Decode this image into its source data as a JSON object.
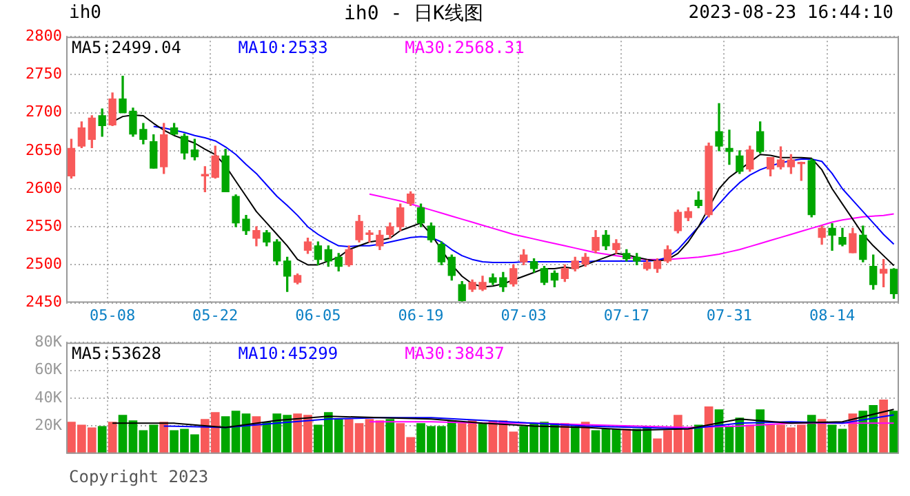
{
  "chart_data": [
    {
      "type": "candlestick",
      "title": "ih0 - 日K线图",
      "annotations": [
        "ih0",
        "2023-08-23 16:44:10"
      ],
      "categories": [
        null,
        null,
        null,
        null,
        "05-08",
        null,
        null,
        null,
        null,
        null,
        null,
        null,
        null,
        null,
        "05-22",
        null,
        null,
        null,
        null,
        null,
        null,
        null,
        null,
        null,
        "06-05",
        null,
        null,
        null,
        null,
        null,
        null,
        null,
        null,
        null,
        "06-19",
        null,
        null,
        null,
        null,
        null,
        null,
        null,
        null,
        null,
        "07-03",
        null,
        null,
        null,
        null,
        null,
        null,
        null,
        null,
        null,
        "07-17",
        null,
        null,
        null,
        null,
        null,
        null,
        null,
        null,
        null,
        "07-31",
        null,
        null,
        null,
        null,
        null,
        null,
        null,
        null,
        null,
        "08-14",
        null,
        null,
        null,
        null,
        null,
        null
      ],
      "ohlc": [
        [
          2617,
          2665,
          2614,
          2653
        ],
        [
          2656,
          2688,
          2654,
          2680
        ],
        [
          2665,
          2696,
          2654,
          2693
        ],
        [
          2696,
          2705,
          2669,
          2683
        ],
        [
          2684,
          2726,
          2683,
          2718
        ],
        [
          2718,
          2748,
          2700,
          2700
        ],
        [
          2702,
          2706,
          2669,
          2672
        ],
        [
          2678,
          2686,
          2659,
          2665
        ],
        [
          2662,
          2671,
          2627,
          2627
        ],
        [
          2629,
          2686,
          2620,
          2671
        ],
        [
          2680,
          2686,
          2671,
          2672
        ],
        [
          2669,
          2672,
          2639,
          2647
        ],
        [
          2651,
          2665,
          2638,
          2642
        ],
        [
          2617,
          2629,
          2596,
          2618
        ],
        [
          2615,
          2656,
          2614,
          2643
        ],
        [
          2643,
          2652,
          2596,
          2596
        ],
        [
          2590,
          2592,
          2550,
          2555
        ],
        [
          2560,
          2565,
          2540,
          2545
        ],
        [
          2535,
          2550,
          2525,
          2545
        ],
        [
          2542,
          2545,
          2525,
          2530
        ],
        [
          2530,
          2533,
          2500,
          2505
        ],
        [
          2505,
          2510,
          2465,
          2485
        ],
        [
          2477,
          2488,
          2475,
          2486
        ],
        [
          2519,
          2535,
          2515,
          2530
        ],
        [
          2525,
          2530,
          2500,
          2507
        ],
        [
          2520,
          2525,
          2498,
          2505
        ],
        [
          2510,
          2515,
          2492,
          2498
        ],
        [
          2500,
          2525,
          2498,
          2520
        ],
        [
          2533,
          2565,
          2530,
          2557
        ],
        [
          2540,
          2545,
          2530,
          2541
        ],
        [
          2525,
          2545,
          2520,
          2539
        ],
        [
          2540,
          2555,
          2535,
          2550
        ],
        [
          2550,
          2580,
          2545,
          2575
        ],
        [
          2581,
          2596,
          2578,
          2593
        ],
        [
          2575,
          2580,
          2550,
          2555
        ],
        [
          2551,
          2555,
          2530,
          2533
        ],
        [
          2527,
          2530,
          2500,
          2504
        ],
        [
          2510,
          2513,
          2480,
          2486
        ],
        [
          2474,
          2478,
          2452,
          2453
        ],
        [
          2468,
          2480,
          2465,
          2477
        ],
        [
          2468,
          2485,
          2466,
          2477
        ],
        [
          2483,
          2488,
          2474,
          2477
        ],
        [
          2483,
          2490,
          2465,
          2471
        ],
        [
          2475,
          2500,
          2472,
          2495
        ],
        [
          2504,
          2520,
          2500,
          2513
        ],
        [
          2504,
          2508,
          2490,
          2495
        ],
        [
          2495,
          2498,
          2474,
          2477
        ],
        [
          2489,
          2492,
          2471,
          2480
        ],
        [
          2482,
          2500,
          2478,
          2495
        ],
        [
          2495,
          2510,
          2492,
          2505
        ],
        [
          2501,
          2515,
          2498,
          2510
        ],
        [
          2519,
          2545,
          2516,
          2536
        ],
        [
          2539,
          2545,
          2520,
          2525
        ],
        [
          2520,
          2533,
          2515,
          2528
        ],
        [
          2515,
          2520,
          2505,
          2508
        ],
        [
          2510,
          2515,
          2500,
          2505
        ],
        [
          2495,
          2506,
          2493,
          2503
        ],
        [
          2495,
          2508,
          2490,
          2505
        ],
        [
          2505,
          2525,
          2503,
          2520
        ],
        [
          2545,
          2572,
          2542,
          2569
        ],
        [
          2562,
          2575,
          2558,
          2570
        ],
        [
          2585,
          2596,
          2575,
          2578
        ],
        [
          2566,
          2660,
          2563,
          2656
        ],
        [
          2675,
          2712,
          2650,
          2656
        ],
        [
          2653,
          2677,
          2632,
          2649
        ],
        [
          2643,
          2650,
          2620,
          2623
        ],
        [
          2626,
          2656,
          2623,
          2651
        ],
        [
          2675,
          2688,
          2647,
          2649
        ],
        [
          2626,
          2641,
          2617,
          2641
        ],
        [
          2629,
          2655,
          2626,
          2638
        ],
        [
          2629,
          2645,
          2620,
          2638
        ],
        [
          2633,
          2635,
          2611,
          2634
        ],
        [
          2637,
          2639,
          2563,
          2566
        ],
        [
          2536,
          2551,
          2527,
          2548
        ],
        [
          2548,
          2554,
          2519,
          2539
        ],
        [
          2536,
          2548,
          2525,
          2527
        ],
        [
          2516,
          2548,
          2516,
          2541
        ],
        [
          2539,
          2551,
          2504,
          2507
        ],
        [
          2498,
          2513,
          2468,
          2474
        ],
        [
          2489,
          2507,
          2471,
          2494
        ],
        [
          2494,
          2495,
          2456,
          2462
        ]
      ],
      "series": [
        {
          "name": "MA5:2499.04",
          "type": "line",
          "color": "#000000",
          "values": [
            null,
            null,
            null,
            null,
            2688,
            2695,
            2697,
            2696,
            2686,
            2677,
            2670,
            2665,
            2660,
            2652,
            2645,
            2630,
            2610,
            2590,
            2570,
            2555,
            2540,
            2525,
            2507,
            2500,
            2500,
            2505,
            2510,
            2520,
            2525,
            2530,
            2532,
            2535,
            2545,
            2550,
            2555,
            2540,
            2520,
            2500,
            2485,
            2475,
            2471,
            2472,
            2475,
            2480,
            2485,
            2490,
            2495,
            2495,
            2497,
            2495,
            2500,
            2505,
            2510,
            2515,
            2513,
            2510,
            2507,
            2505,
            2507,
            2515,
            2530,
            2550,
            null,
            2600,
            2615,
            2625,
            2635,
            2645,
            2644,
            2641,
            2641,
            2641,
            2640,
            2625,
            2600,
            2580,
            2560,
            2540,
            2525,
            2512,
            2499
          ]
        },
        {
          "name": "MA10:2533",
          "type": "line",
          "color": "#0000ff",
          "values": [
            null,
            null,
            null,
            null,
            null,
            null,
            null,
            null,
            2682,
            2680,
            2677,
            2674,
            2670,
            2667,
            2663,
            2655,
            2645,
            2632,
            2620,
            2605,
            2590,
            2578,
            2565,
            2550,
            2540,
            2532,
            2525,
            2524,
            2525,
            2525,
            2527,
            2530,
            2533,
            2536,
            2537,
            2536,
            2530,
            2520,
            2512,
            2507,
            2504,
            2503,
            2503,
            2503,
            2504,
            2504,
            2504,
            2504,
            2504,
            2504,
            2504,
            2505,
            2505,
            2505,
            2505,
            2505,
            2505,
            2506,
            2510,
            2520,
            2535,
            2550,
            2565,
            2580,
            2595,
            2608,
            2618,
            2625,
            2630,
            2634,
            2637,
            2639,
            2639,
            2636,
            2620,
            2600,
            2585,
            2570,
            2555,
            2540,
            2527
          ]
        },
        {
          "name": "MA30:2568.31",
          "type": "line",
          "color": "#ff00ff",
          "values": [
            null,
            null,
            null,
            null,
            null,
            null,
            null,
            null,
            null,
            null,
            null,
            null,
            null,
            null,
            null,
            null,
            null,
            null,
            null,
            null,
            null,
            null,
            null,
            null,
            null,
            null,
            null,
            null,
            null,
            2593,
            2590,
            2587,
            2584,
            2580,
            2576,
            2572,
            2568,
            2564,
            2560,
            2556,
            2552,
            2548,
            2544,
            2540,
            2537,
            2534,
            2531,
            2528,
            2525,
            2522,
            2519,
            2516,
            2514,
            2512,
            2510,
            2508,
            2507,
            2507,
            2507,
            2508,
            2509,
            2510,
            2512,
            2514,
            2517,
            2520,
            2524,
            2528,
            2532,
            2536,
            2540,
            2544,
            2548,
            2552,
            2556,
            2559,
            2561,
            2563,
            2564,
            2565,
            2567
          ]
        }
      ],
      "ylim": [
        2450,
        2800
      ],
      "yticks": [
        2450,
        2500,
        2550,
        2600,
        2650,
        2700,
        2750,
        2800
      ],
      "grid": true,
      "legend": "top left"
    },
    {
      "type": "bar",
      "annotations": [
        "Copyright 2023"
      ],
      "categories": [
        null,
        null,
        null,
        null,
        null,
        null,
        null,
        null,
        null,
        null,
        null,
        null,
        null,
        null,
        null,
        null,
        null,
        null,
        null,
        null,
        null,
        null,
        null,
        null,
        null,
        null,
        null,
        null,
        null,
        null,
        null,
        null,
        null,
        null,
        null,
        null,
        null,
        null,
        null,
        null,
        null,
        null,
        null,
        null,
        null,
        null,
        null,
        null,
        null,
        null,
        null,
        null,
        null,
        null,
        null,
        null,
        null,
        null,
        null,
        null,
        null,
        null,
        null,
        null,
        null,
        null,
        null,
        null,
        null,
        null,
        null,
        null,
        null,
        null,
        null,
        null,
        null,
        null,
        null,
        null,
        null
      ],
      "values": [
        23000,
        21000,
        19000,
        20000,
        23000,
        28000,
        24000,
        17000,
        21000,
        23000,
        17000,
        18000,
        14000,
        25000,
        30000,
        27000,
        31000,
        29000,
        27000,
        23000,
        29000,
        28000,
        29000,
        28000,
        21000,
        30000,
        25000,
        25000,
        22000,
        25000,
        24000,
        25000,
        22000,
        12000,
        22000,
        20000,
        20000,
        24000,
        22000,
        24000,
        22000,
        24000,
        24000,
        16000,
        20000,
        22000,
        23000,
        22000,
        22000,
        20000,
        23000,
        17000,
        18000,
        18000,
        18000,
        18000,
        20000,
        11000,
        17000,
        28000,
        18000,
        21000,
        34000,
        32000,
        20000,
        26000,
        21000,
        32000,
        21000,
        21000,
        19000,
        21000,
        28000,
        25000,
        21000,
        18000,
        29000,
        31000,
        35000,
        39000,
        31000
      ],
      "colors": [
        "#f85a5a",
        "#f85a5a",
        "#f85a5a",
        "#00a600",
        "#f85a5a",
        "#00a600",
        "#00a600",
        "#00a600",
        "#00a600",
        "#f85a5a",
        "#00a600",
        "#00a600",
        "#00a600",
        "#f85a5a",
        "#f85a5a",
        "#00a600",
        "#00a600",
        "#00a600",
        "#f85a5a",
        "#00a600",
        "#00a600",
        "#00a600",
        "#f85a5a",
        "#f85a5a",
        "#00a600",
        "#00a600",
        "#00a600",
        "#f85a5a",
        "#f85a5a",
        "#f85a5a",
        "#f85a5a",
        "#00a600",
        "#f85a5a",
        "#f85a5a",
        "#00a600",
        "#00a600",
        "#00a600",
        "#00a600",
        "#f85a5a",
        "#f85a5a",
        "#00a600",
        "#f85a5a",
        "#f85a5a",
        "#f85a5a",
        "#00a600",
        "#00a600",
        "#00a600",
        "#00a600",
        "#f85a5a",
        "#00a600",
        "#f85a5a",
        "#00a600",
        "#00a600",
        "#00a600",
        "#f85a5a",
        "#00a600",
        "#00a600",
        "#f85a5a",
        "#f85a5a",
        "#f85a5a",
        "#f85a5a",
        "#00a600",
        "#f85a5a",
        "#00a600",
        "#00a600",
        "#00a600",
        "#f85a5a",
        "#00a600",
        "#f85a5a",
        "#f85a5a",
        "#f85a5a",
        "#f85a5a",
        "#00a600",
        "#f85a5a",
        "#00a600",
        "#00a600",
        "#f85a5a",
        "#00a600",
        "#00a600",
        "#f85a5a",
        "#00a600"
      ],
      "series": [
        {
          "name": "MA5:53628",
          "type": "line",
          "color": "#000000",
          "values": [
            null,
            null,
            null,
            null,
            22000,
            null,
            null,
            null,
            null,
            null,
            22000,
            null,
            null,
            null,
            null,
            19000,
            null,
            null,
            null,
            null,
            24000,
            null,
            null,
            null,
            null,
            27000,
            null,
            null,
            null,
            null,
            26000,
            null,
            null,
            null,
            null,
            25000,
            null,
            null,
            null,
            null,
            22000,
            null,
            null,
            null,
            null,
            20000,
            null,
            null,
            null,
            null,
            19000,
            null,
            null,
            null,
            null,
            17000,
            null,
            null,
            null,
            null,
            18000,
            null,
            null,
            null,
            null,
            25000,
            null,
            null,
            null,
            null,
            22000,
            null,
            null,
            null,
            null,
            23000,
            null,
            null,
            null,
            null,
            32000
          ]
        },
        {
          "name": "MA10:45299",
          "type": "line",
          "color": "#0000ff",
          "values": [
            null,
            null,
            null,
            null,
            null,
            null,
            null,
            null,
            null,
            20000,
            null,
            null,
            null,
            null,
            null,
            19000,
            null,
            null,
            null,
            null,
            22000,
            null,
            null,
            null,
            null,
            25000,
            null,
            null,
            null,
            null,
            26000,
            null,
            null,
            null,
            null,
            26000,
            null,
            null,
            null,
            null,
            24000,
            null,
            null,
            null,
            null,
            22000,
            null,
            null,
            null,
            null,
            20000,
            null,
            null,
            null,
            null,
            19000,
            null,
            null,
            null,
            null,
            18000,
            null,
            null,
            null,
            null,
            22000,
            null,
            null,
            null,
            null,
            23000,
            null,
            null,
            null,
            null,
            22000,
            null,
            null,
            null,
            null,
            28000
          ]
        },
        {
          "name": "MA30:38437",
          "type": "line",
          "color": "#ff00ff",
          "values": [
            null,
            null,
            null,
            null,
            null,
            null,
            null,
            null,
            null,
            null,
            null,
            null,
            null,
            null,
            null,
            null,
            null,
            null,
            null,
            null,
            null,
            null,
            null,
            null,
            null,
            null,
            null,
            null,
            null,
            23000,
            null,
            null,
            null,
            null,
            null,
            23000,
            null,
            null,
            null,
            null,
            22000,
            null,
            null,
            null,
            null,
            22000,
            null,
            null,
            null,
            null,
            21000,
            null,
            null,
            null,
            null,
            20000,
            null,
            null,
            null,
            null,
            19000,
            null,
            null,
            null,
            null,
            20000,
            null,
            null,
            null,
            null,
            22000,
            null,
            null,
            null,
            null,
            22000,
            null,
            null,
            null,
            null,
            22000
          ]
        }
      ],
      "ylim": [
        0,
        80000
      ],
      "yticks": [
        {
          "value": 20000,
          "label": "20K"
        },
        {
          "value": 40000,
          "label": "40K"
        },
        {
          "value": 60000,
          "label": "60K"
        },
        {
          "value": 80000,
          "label": "80K"
        }
      ],
      "grid": true,
      "legend": "top left",
      "tick_labels": "y"
    }
  ]
}
